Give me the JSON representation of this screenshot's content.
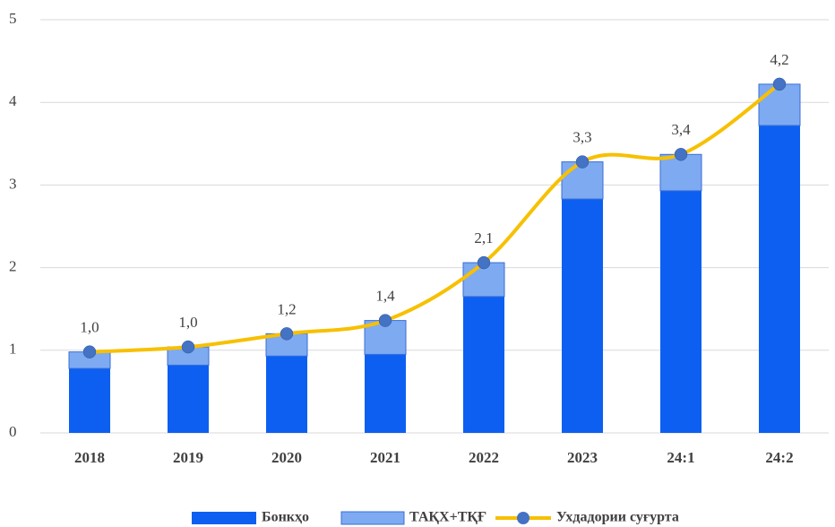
{
  "chart_data": {
    "type": "stacked-bar-line",
    "categories": [
      "2018",
      "2019",
      "2020",
      "2021",
      "2022",
      "2023",
      "24:1",
      "24:2"
    ],
    "series": [
      {
        "name": "Бонкҳо",
        "color": "#0d5ff2",
        "type": "bar",
        "values": [
          0.78,
          0.82,
          0.93,
          0.95,
          1.65,
          2.83,
          2.93,
          3.72
        ]
      },
      {
        "name": "ТАҚХ+ТҚҒ",
        "color": "#7eaaf2",
        "type": "bar",
        "values": [
          0.2,
          0.22,
          0.27,
          0.41,
          0.41,
          0.45,
          0.44,
          0.5
        ]
      },
      {
        "name": "Ухдадории суғурта",
        "color": "#f7c000",
        "marker_color": "#4472c4",
        "type": "line",
        "values": [
          0.98,
          1.04,
          1.2,
          1.36,
          2.06,
          3.28,
          3.37,
          4.22
        ],
        "value_labels": [
          "1,0",
          "1,0",
          "1,2",
          "1,4",
          "2,1",
          "3,3",
          "3,4",
          "4,2"
        ]
      }
    ],
    "ylim": [
      0,
      5
    ],
    "yticks": [
      0,
      1,
      2,
      3,
      4,
      5
    ],
    "grid": true,
    "legend": "bottom"
  }
}
